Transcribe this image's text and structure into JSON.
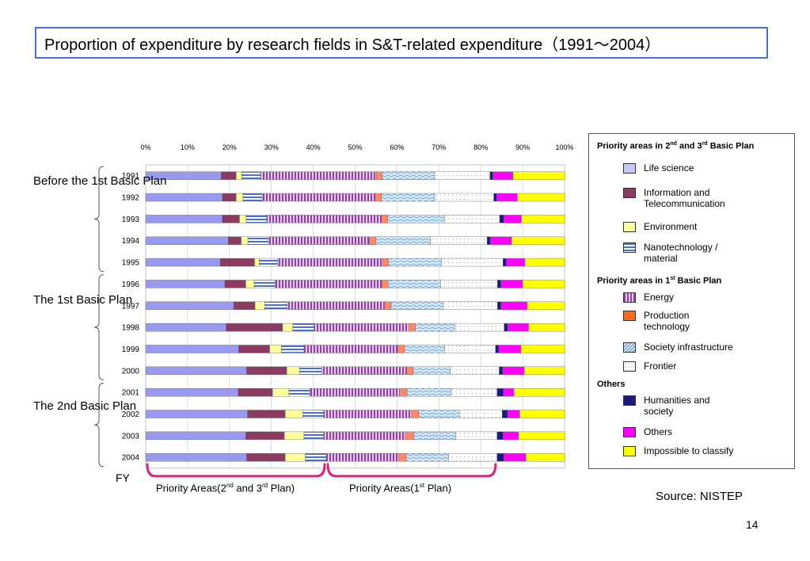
{
  "title": "Proportion of expenditure by research fields in S&T-related expenditure（1991～2004）",
  "chart_data": {
    "type": "bar",
    "orientation": "horizontal",
    "stacked": true,
    "normalized": true,
    "xlim": [
      0,
      100
    ],
    "x_ticks": [
      "0%",
      "10%",
      "20%",
      "30%",
      "40%",
      "50%",
      "60%",
      "70%",
      "80%",
      "90%",
      "100%"
    ],
    "categories": [
      "1991",
      "1992",
      "1993",
      "1994",
      "1995",
      "1996",
      "1997",
      "1998",
      "1999",
      "2000",
      "2001",
      "2002",
      "2003",
      "2004"
    ],
    "ylabel": "FY",
    "grid": true,
    "series": [
      {
        "name": "Life science",
        "color": "#9999f0",
        "pattern": "solid",
        "values": [
          18.0,
          18.3,
          18.3,
          19.7,
          17.8,
          18.9,
          21.0,
          19.2,
          22.2,
          24.1,
          22.1,
          24.3,
          23.9,
          24.1
        ]
      },
      {
        "name": "Information and Telecommunication",
        "color": "#8b3a62",
        "pattern": "solid",
        "values": [
          3.6,
          3.3,
          4.1,
          3.1,
          8.2,
          5.0,
          5.1,
          13.5,
          7.4,
          9.6,
          8.2,
          9.0,
          9.2,
          9.2
        ]
      },
      {
        "name": "Environment",
        "color": "#ffff99",
        "pattern": "solid",
        "values": [
          1.3,
          1.6,
          1.6,
          1.6,
          1.1,
          2.0,
          2.3,
          2.4,
          2.8,
          3.0,
          3.9,
          4.2,
          4.7,
          4.8
        ]
      },
      {
        "name": "Nanotechnology / material",
        "color": "#99bbee",
        "pattern": "hstripe",
        "values": [
          4.6,
          4.6,
          4.9,
          4.9,
          4.4,
          5.0,
          5.4,
          5.1,
          5.4,
          5.3,
          5.0,
          5.0,
          4.7,
          5.0
        ]
      },
      {
        "name": "Energy",
        "color": "#b888c8",
        "pattern": "vstripe",
        "values": [
          27.6,
          27.0,
          27.4,
          24.1,
          25.1,
          25.5,
          23.2,
          22.6,
          22.4,
          20.3,
          21.4,
          21.0,
          19.5,
          17.3
        ]
      },
      {
        "name": "Production technology",
        "color": "#ff8866",
        "pattern": "solid",
        "values": [
          1.4,
          1.5,
          1.5,
          1.6,
          1.4,
          1.5,
          1.6,
          1.6,
          1.6,
          1.6,
          1.8,
          1.7,
          2.0,
          1.8
        ]
      },
      {
        "name": "Society infrastructure",
        "color": "#b8d8f0",
        "pattern": "wave",
        "values": [
          12.5,
          12.7,
          13.5,
          13.0,
          12.6,
          12.5,
          12.4,
          9.4,
          9.6,
          8.8,
          10.5,
          9.7,
          10.0,
          10.1
        ]
      },
      {
        "name": "Frontier",
        "color": "#ffffff",
        "pattern": "dots",
        "values": [
          13.2,
          14.1,
          13.2,
          13.5,
          14.7,
          13.6,
          13.0,
          11.8,
          12.1,
          11.7,
          11.0,
          10.2,
          9.9,
          11.6
        ]
      },
      {
        "name": "Humanities and society",
        "color": "#1a1a80",
        "pattern": "solid",
        "values": [
          0.7,
          0.7,
          1.0,
          0.8,
          0.8,
          0.8,
          0.8,
          0.8,
          0.8,
          0.8,
          1.5,
          1.3,
          1.4,
          1.6
        ]
      },
      {
        "name": "Others",
        "color": "#ff00ff",
        "pattern": "solid",
        "values": [
          4.8,
          4.9,
          4.2,
          5.1,
          4.4,
          5.2,
          6.3,
          5.0,
          5.3,
          5.2,
          2.5,
          2.9,
          3.7,
          5.3
        ]
      },
      {
        "name": "Impossible to classify",
        "color": "#ffff00",
        "pattern": "solid",
        "values": [
          12.3,
          11.3,
          10.3,
          12.6,
          9.5,
          10.0,
          8.9,
          8.6,
          10.4,
          9.6,
          12.1,
          10.7,
          11.0,
          9.2
        ]
      }
    ],
    "legend": {
      "position": "right",
      "groups": [
        {
          "heading_parts": [
            "Priority areas in 2",
            "nd",
            " and 3",
            "rd",
            " Basic Plan"
          ],
          "items": [
            "Life science",
            "Information and Telecommunication",
            "Environment",
            "Nanotechnology / material"
          ]
        },
        {
          "heading_parts": [
            "Priority areas in 1",
            "st",
            "  Basic Plan"
          ],
          "items": [
            "Energy",
            "Production technology",
            "Society infrastructure",
            "Frontier"
          ]
        },
        {
          "heading_parts": [
            "Others"
          ],
          "items": [
            "Humanities and society",
            "Others",
            "Impossible to classify"
          ]
        }
      ]
    },
    "periods": [
      {
        "label": "Before the 1st Basic Plan",
        "from": "1991",
        "to": "1995"
      },
      {
        "label": "The 1st Basic Plan",
        "from": "1996",
        "to": "2000"
      },
      {
        "label": "The 2nd Basic Plan",
        "from": "2001",
        "to": "2004"
      }
    ],
    "annotations": [
      {
        "text_parts": [
          "Priority Areas(2",
          "nd",
          " and 3",
          "rd",
          " Plan)"
        ],
        "bracket": "first four series"
      },
      {
        "text_parts": [
          "Priority Areas(1",
          "st",
          "  Plan)"
        ],
        "bracket": "next four series"
      }
    ]
  },
  "labels": {
    "period_1": "Before the 1st Basic Plan",
    "period_2": "The 1st Basic Plan",
    "period_3": "The 2nd Basic Plan",
    "fy": "FY",
    "source": "Source: NISTEP",
    "page_number": "14"
  }
}
